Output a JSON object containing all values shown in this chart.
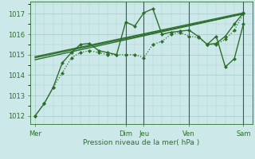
{
  "background_color": "#cce8e8",
  "grid_color": "#a8d0d0",
  "line_color": "#2d6e2d",
  "title": "Pression niveau de la mer( hPa )",
  "ylabel_ticks": [
    1012,
    1013,
    1014,
    1015,
    1016,
    1017
  ],
  "x_day_labels": [
    "Mer",
    "Dim",
    "Jeu",
    "Ven",
    "Sam"
  ],
  "x_day_positions": [
    0,
    10,
    12,
    17,
    23
  ],
  "xlim": [
    -0.5,
    24
  ],
  "ylim": [
    1011.6,
    1017.6
  ],
  "trend1": {
    "x": [
      0,
      23
    ],
    "y": [
      1014.85,
      1017.0
    ]
  },
  "trend2": {
    "x": [
      0,
      23
    ],
    "y": [
      1014.9,
      1017.05
    ]
  },
  "trend3": {
    "x": [
      0,
      23
    ],
    "y": [
      1014.75,
      1017.0
    ]
  },
  "main_series": {
    "x": [
      0,
      1,
      2,
      3,
      4,
      5,
      6,
      7,
      8,
      9,
      10,
      11,
      12,
      13,
      14,
      15,
      16,
      17,
      18,
      19,
      20,
      21,
      22,
      23
    ],
    "y": [
      1012.0,
      1012.6,
      1013.4,
      1014.6,
      1015.1,
      1015.5,
      1015.55,
      1015.2,
      1015.1,
      1015.0,
      1016.6,
      1016.4,
      1017.05,
      1017.25,
      1016.0,
      1016.1,
      1016.15,
      1016.2,
      1015.9,
      1015.5,
      1015.55,
      1015.9,
      1016.5,
      1017.05
    ]
  },
  "dotted_series": {
    "x": [
      0,
      1,
      2,
      3,
      4,
      5,
      6,
      7,
      8,
      9,
      10,
      11,
      12,
      13,
      14,
      15,
      16,
      17,
      18,
      19,
      20,
      21,
      22,
      23
    ],
    "y": [
      1012.0,
      1012.6,
      1013.4,
      1014.1,
      1014.85,
      1015.1,
      1015.2,
      1015.1,
      1015.0,
      1015.0,
      1015.0,
      1015.0,
      1014.85,
      1015.5,
      1015.65,
      1016.0,
      1016.1,
      1015.9,
      1015.85,
      1015.5,
      1015.5,
      1015.75,
      1016.2,
      1017.0
    ]
  },
  "spike_series": {
    "x": [
      19,
      20,
      21,
      22,
      23
    ],
    "y": [
      1015.5,
      1015.9,
      1014.4,
      1014.8,
      1016.5
    ]
  },
  "vlines": [
    10,
    12,
    17,
    23
  ]
}
